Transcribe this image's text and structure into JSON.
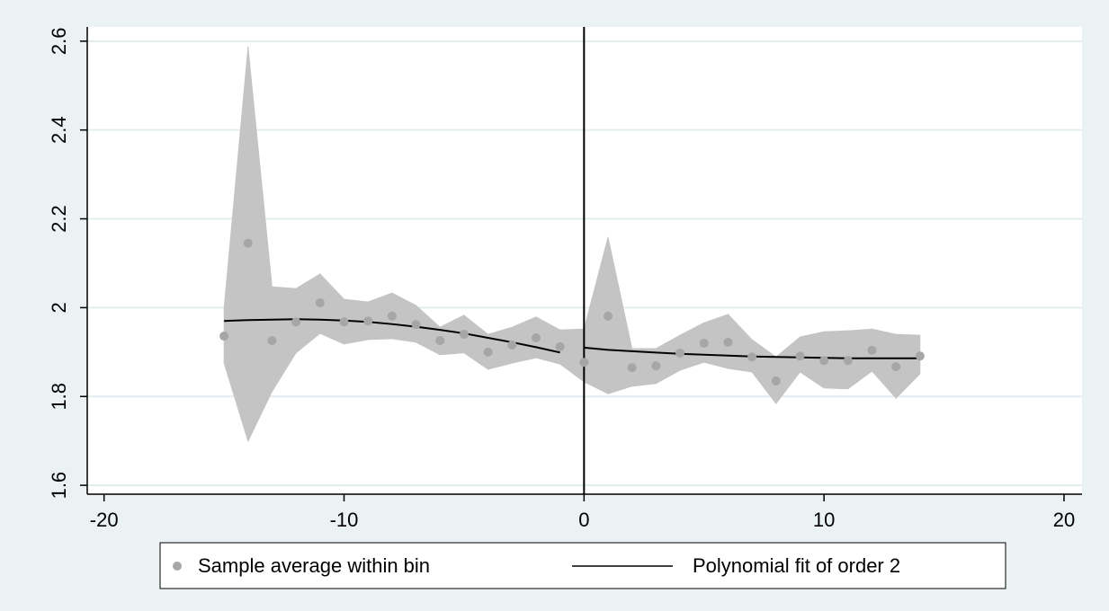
{
  "chart_data": {
    "type": "rdplot",
    "x": [
      -15,
      -14,
      -13,
      -12,
      -11,
      -10,
      -9,
      -8,
      -7,
      -6,
      -5,
      -4,
      -3,
      -2,
      -1,
      0,
      1,
      2,
      3,
      4,
      5,
      6,
      7,
      8,
      9,
      10,
      11,
      12,
      13,
      14
    ],
    "series": [
      {
        "name": "Sample average within bin",
        "color": "#a6a6a6",
        "values": [
          1.936,
          2.145,
          1.926,
          1.968,
          2.011,
          1.968,
          1.97,
          1.981,
          1.962,
          1.926,
          1.94,
          1.9,
          1.916,
          1.932,
          1.912,
          1.877,
          1.981,
          1.865,
          1.869,
          1.898,
          1.92,
          1.922,
          1.889,
          1.835,
          1.891,
          1.881,
          1.881,
          1.904,
          1.867,
          1.891
        ]
      }
    ],
    "ci_upper": [
      1.999,
      2.588,
      2.047,
      2.043,
      2.076,
      2.019,
      2.013,
      2.033,
      2.005,
      1.956,
      1.983,
      1.94,
      1.956,
      1.979,
      1.95,
      1.952,
      2.159,
      1.908,
      1.908,
      1.938,
      1.966,
      1.985,
      1.928,
      1.889,
      1.934,
      1.946,
      1.948,
      1.952,
      1.94,
      1.938
    ],
    "ci_lower": [
      1.875,
      1.699,
      1.811,
      1.898,
      1.942,
      1.918,
      1.928,
      1.93,
      1.922,
      1.894,
      1.898,
      1.861,
      1.875,
      1.887,
      1.873,
      1.833,
      1.806,
      1.823,
      1.829,
      1.859,
      1.877,
      1.863,
      1.855,
      1.784,
      1.855,
      1.819,
      1.817,
      1.857,
      1.796,
      1.851
    ],
    "ci_color": "#c4c4c4",
    "fit": {
      "name": "Polynomial fit of order 2",
      "color": "#000000",
      "segments": [
        {
          "x": [
            -15,
            -14,
            -13,
            -12,
            -11,
            -10,
            -9,
            -8,
            -7,
            -6,
            -5,
            -4,
            -3,
            -2,
            -1
          ],
          "values": [
            1.97,
            1.972,
            1.973,
            1.974,
            1.973,
            1.971,
            1.968,
            1.963,
            1.957,
            1.95,
            1.942,
            1.932,
            1.922,
            1.911,
            1.899
          ]
        },
        {
          "x": [
            0,
            1,
            2,
            3,
            4,
            5,
            6,
            7,
            8,
            9,
            10,
            11,
            12,
            13,
            14
          ],
          "values": [
            1.91,
            1.905,
            1.902,
            1.899,
            1.896,
            1.894,
            1.892,
            1.89,
            1.889,
            1.888,
            1.887,
            1.886,
            1.886,
            1.886,
            1.886
          ]
        }
      ]
    },
    "cutoff": 0,
    "xlim": [
      -20.7,
      20.75
    ],
    "ylim": [
      1.58,
      2.632
    ],
    "xticks": [
      -20,
      -10,
      0,
      10,
      20
    ],
    "yticks": [
      1.6,
      1.8,
      2,
      2.2,
      2.4,
      2.6
    ],
    "grid": true
  }
}
